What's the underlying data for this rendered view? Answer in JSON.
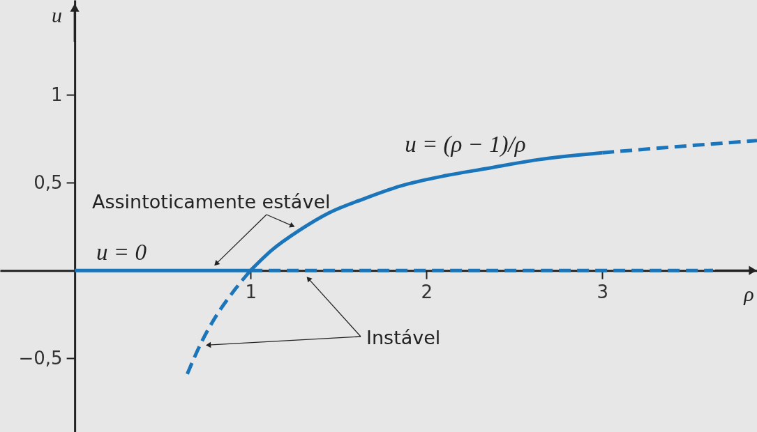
{
  "chart_data": {
    "type": "line",
    "xlabel": "ρ",
    "ylabel": "u",
    "annotations": [
      "Assintoticamente estável",
      "Instável"
    ],
    "xlim": [
      -0.425,
      3.88
    ],
    "ylim": [
      -0.92,
      1.54
    ],
    "xticks": [
      1,
      2,
      3
    ],
    "yticks": [
      {
        "value": -0.5,
        "label": "−0,5"
      },
      {
        "value": 0.5,
        "label": "0,5"
      },
      1
    ],
    "series": [
      {
        "name": "u = 0",
        "color": "#1b75bb",
        "line_style": "solid",
        "x": [
          0,
          1
        ],
        "values": [
          0,
          0
        ]
      },
      {
        "color": "#1b75bb",
        "line_style": "dashed",
        "x": [
          1,
          3.63
        ],
        "values": [
          0,
          0
        ]
      },
      {
        "name": "u = (ρ − 1)/ρ",
        "color": "#1b75bb",
        "line_style": "solid",
        "x": [
          1,
          1.12,
          1.28,
          1.45,
          1.65,
          1.85,
          2.11,
          2.34,
          2.63,
          3
        ],
        "values": [
          0,
          0.115,
          0.23,
          0.33,
          0.41,
          0.48,
          0.54,
          0.58,
          0.63,
          0.67
        ]
      },
      {
        "color": "#1b75bb",
        "line_style": "dashed",
        "x": [
          3,
          3.36,
          3.62,
          3.88
        ],
        "values": [
          0.67,
          0.7,
          0.72,
          0.74
        ]
      },
      {
        "color": "#1b75bb",
        "line_style": "dashed",
        "x": [
          0.64,
          0.72,
          0.81,
          0.91,
          1
        ],
        "values": [
          -0.59,
          -0.41,
          -0.25,
          -0.11,
          0
        ]
      }
    ]
  }
}
